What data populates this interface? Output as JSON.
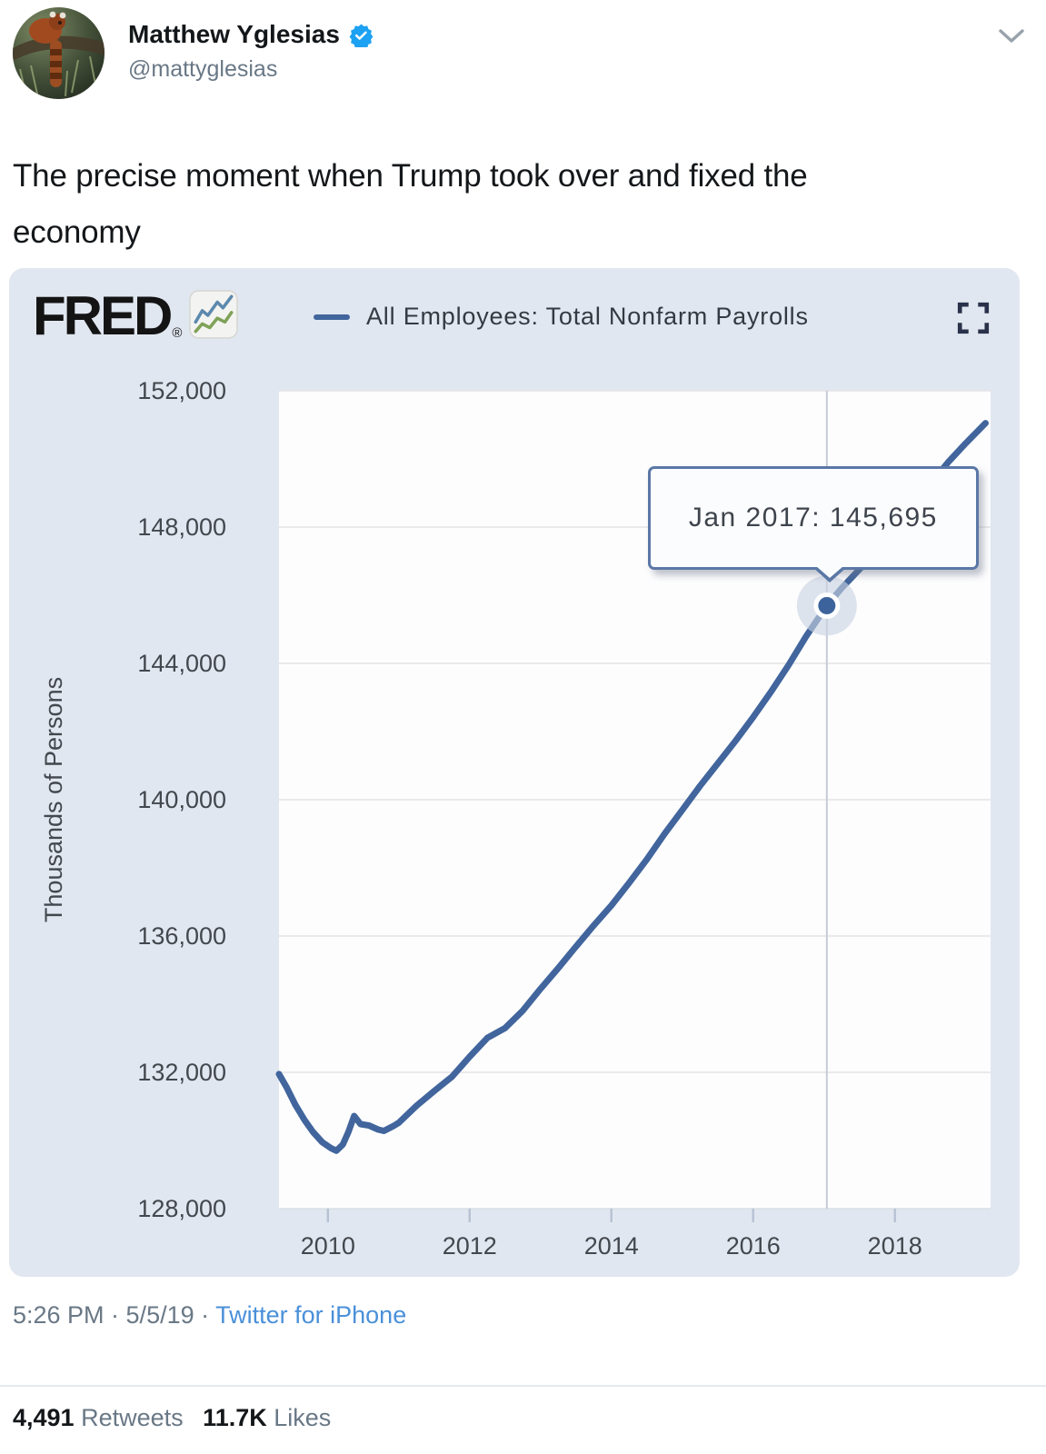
{
  "tweet": {
    "author": {
      "name": "Matthew Yglesias",
      "handle": "@mattyglesias",
      "verified": true
    },
    "text": "The precise moment when Trump took over and fixed the economy",
    "timestamp": "5:26 PM · 5/5/19 ·",
    "source": "Twitter for iPhone",
    "stats": {
      "retweets_count": "4,491",
      "retweets_label": "Retweets",
      "likes_count": "11.7K",
      "likes_label": "Likes"
    }
  },
  "chart": {
    "brand": "FRED",
    "registered_mark": "®"
  },
  "icons": {
    "header_menu": "chevron-down",
    "chart_expand": "fullscreen-corners",
    "legend_swatch": "line-dash",
    "brand_icon": "line-chart"
  },
  "colors": {
    "line": "#41659c",
    "card_bg": "#e1e7f0",
    "tooltip_border": "#5a77a6",
    "link": "#4a90d9",
    "verified_badge": "#1da1f2",
    "axis_text": "#43474e",
    "gridline": "#e4e4e6"
  },
  "chart_data": {
    "type": "line",
    "title": "All Employees: Total Nonfarm Payrolls",
    "xlabel": "",
    "ylabel": "Thousands of Persons",
    "x_ticks": [
      2010,
      2012,
      2014,
      2016,
      2018
    ],
    "y_ticks": [
      128000,
      132000,
      136000,
      140000,
      144000,
      148000,
      152000
    ],
    "xlim": [
      2009.31,
      2019.35
    ],
    "ylim": [
      128000,
      152000
    ],
    "grid": "horizontal",
    "legend_position": "top",
    "highlight": {
      "x": 2017.04,
      "y": 145695,
      "label": "Jan 2017: 145,695"
    },
    "series": [
      {
        "name": "All Employees: Total Nonfarm Payrolls",
        "color": "#41659c",
        "points": [
          [
            2009.31,
            131950
          ],
          [
            2009.42,
            131550
          ],
          [
            2009.54,
            131050
          ],
          [
            2009.67,
            130600
          ],
          [
            2009.79,
            130250
          ],
          [
            2009.92,
            129950
          ],
          [
            2010.04,
            129780
          ],
          [
            2010.12,
            129700
          ],
          [
            2010.21,
            129880
          ],
          [
            2010.29,
            130250
          ],
          [
            2010.37,
            130720
          ],
          [
            2010.46,
            130480
          ],
          [
            2010.58,
            130440
          ],
          [
            2010.71,
            130320
          ],
          [
            2010.79,
            130280
          ],
          [
            2010.92,
            130420
          ],
          [
            2011.0,
            130520
          ],
          [
            2011.25,
            131020
          ],
          [
            2011.5,
            131450
          ],
          [
            2011.75,
            131870
          ],
          [
            2012.0,
            132460
          ],
          [
            2012.25,
            133010
          ],
          [
            2012.5,
            133300
          ],
          [
            2012.75,
            133810
          ],
          [
            2013.0,
            134450
          ],
          [
            2013.25,
            135060
          ],
          [
            2013.5,
            135690
          ],
          [
            2013.75,
            136310
          ],
          [
            2014.0,
            136900
          ],
          [
            2014.25,
            137560
          ],
          [
            2014.5,
            138250
          ],
          [
            2014.75,
            139000
          ],
          [
            2015.0,
            139700
          ],
          [
            2015.25,
            140400
          ],
          [
            2015.5,
            141060
          ],
          [
            2015.75,
            141720
          ],
          [
            2016.0,
            142420
          ],
          [
            2016.25,
            143160
          ],
          [
            2016.5,
            143950
          ],
          [
            2016.75,
            144800
          ],
          [
            2017.04,
            145695
          ],
          [
            2017.25,
            146210
          ],
          [
            2017.5,
            146760
          ],
          [
            2017.75,
            147320
          ],
          [
            2018.0,
            147960
          ],
          [
            2018.25,
            148610
          ],
          [
            2018.5,
            149260
          ],
          [
            2018.75,
            149900
          ],
          [
            2019.0,
            150460
          ],
          [
            2019.28,
            151050
          ]
        ]
      }
    ]
  }
}
